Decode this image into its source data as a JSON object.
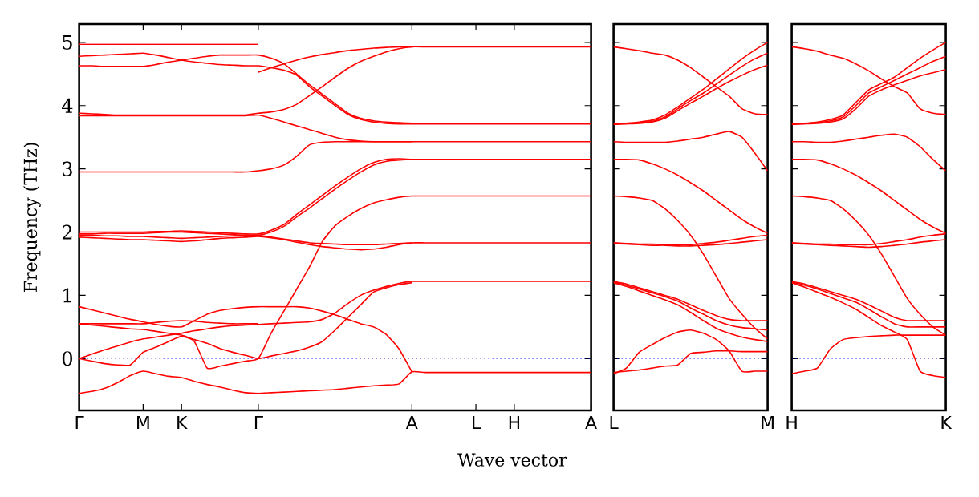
{
  "chart_data": [
    {
      "type": "line",
      "xlabel": "Wave vector",
      "ylabel": "Frequency (THz)",
      "ylim": [
        -0.82,
        5.29
      ],
      "categories": [
        "Γ",
        null,
        null,
        null,
        null,
        "M",
        null,
        null,
        "K",
        null,
        null,
        null,
        null,
        null,
        "Γ",
        null,
        null,
        null,
        null,
        null,
        null,
        null,
        null,
        null,
        null,
        null,
        "A",
        null,
        null,
        null,
        null,
        "L",
        null,
        null,
        "H",
        null,
        null,
        null,
        null,
        null,
        "A"
      ],
      "yticks": [
        0,
        1,
        2,
        3,
        4,
        5
      ],
      "ref_lines": [
        {
          "axis": "y",
          "value": 0,
          "color": "#0000ff",
          "line_style": "dotted"
        }
      ],
      "series": [
        {
          "color": "#ff0000",
          "values": [
            -0.55,
            -0.52,
            -0.47,
            -0.38,
            -0.27,
            -0.2,
            -0.24,
            -0.28,
            -0.3,
            -0.36,
            -0.41,
            -0.45,
            -0.5,
            -0.54,
            -0.55,
            -0.54,
            -0.53,
            -0.52,
            -0.51,
            -0.5,
            -0.49,
            -0.47,
            -0.45,
            -0.43,
            -0.42,
            -0.4,
            -0.21,
            -0.22,
            -0.22,
            -0.22,
            -0.22,
            -0.22,
            -0.22,
            -0.22,
            -0.22,
            -0.22,
            -0.22,
            -0.22,
            -0.22,
            -0.22,
            -0.22
          ]
        },
        {
          "color": "#ff0000",
          "values": [
            0,
            -0.04,
            -0.08,
            -0.1,
            -0.1,
            0.1,
            0.18,
            0.27,
            0.35,
            0.27,
            -0.15,
            -0.12,
            -0.08,
            -0.04,
            0,
            0.4,
            0.75,
            1.1,
            1.45,
            1.85,
            2.1,
            2.25,
            2.37,
            2.46,
            2.51,
            2.55,
            2.57,
            2.57,
            2.57,
            2.57,
            2.57,
            2.57,
            2.57,
            2.57,
            2.57,
            2.57,
            2.57,
            2.57,
            2.57,
            2.57,
            2.57
          ]
        },
        {
          "color": "#ff0000",
          "values": [
            0,
            0.07,
            0.14,
            0.2,
            0.26,
            0.31,
            0.34,
            0.37,
            0.4,
            0.44,
            0.47,
            0.5,
            0.52,
            0.53,
            0.54,
            0.55,
            0.56,
            0.57,
            0.58,
            0.62,
            0.72,
            0.87,
            1.0,
            1.08,
            1.14,
            1.19,
            1.22,
            1.22,
            1.22,
            1.22,
            1.22,
            1.22,
            1.22,
            1.22,
            1.22,
            1.22,
            1.22,
            1.22,
            1.22,
            1.22,
            1.22
          ]
        },
        {
          "color": "#ff0000",
          "values": [
            0.55,
            0.55,
            0.55,
            0.55,
            0.55,
            0.55,
            0.57,
            0.59,
            0.6,
            0.59,
            0.57,
            0.56,
            0.55,
            0.55,
            0.55,
            null,
            null,
            null,
            null,
            null,
            null,
            null,
            null,
            null,
            null,
            null,
            null,
            null,
            null,
            null,
            null,
            null,
            null,
            null,
            null,
            null,
            null,
            null,
            null,
            null,
            null
          ]
        },
        {
          "color": "#ff0000",
          "values": [
            0.55,
            0.53,
            0.51,
            0.49,
            0.47,
            0.46,
            0.43,
            0.4,
            0.37,
            0.3,
            0.24,
            0.16,
            0.1,
            0.05,
            0,
            0.04,
            0.08,
            0.12,
            0.18,
            0.27,
            0.45,
            0.65,
            0.85,
            1.05,
            1.12,
            1.17,
            1.2,
            null,
            null,
            null,
            null,
            null,
            null,
            null,
            null,
            null,
            null,
            null,
            null,
            null,
            null
          ]
        },
        {
          "color": "#ff0000",
          "values": [
            0.82,
            0.77,
            0.72,
            0.67,
            0.62,
            0.58,
            0.54,
            0.51,
            0.5,
            0.6,
            0.7,
            0.76,
            0.79,
            0.81,
            0.82,
            0.82,
            0.82,
            0.82,
            0.8,
            0.75,
            0.69,
            0.62,
            0.55,
            0.5,
            0.38,
            0.15,
            -0.21,
            null,
            null,
            null,
            null,
            null,
            null,
            null,
            null,
            null,
            null,
            null,
            null,
            null,
            null
          ]
        },
        {
          "color": "#ff0000",
          "values": [
            2.0,
            2.0,
            2.0,
            2.0,
            2.0,
            2.0,
            2.01,
            2.01,
            2.02,
            2.01,
            2.0,
            1.99,
            1.98,
            1.97,
            1.97,
            2.03,
            2.12,
            2.28,
            2.43,
            2.58,
            2.73,
            2.87,
            3.0,
            3.1,
            3.15,
            3.16,
            3.15,
            3.15,
            3.15,
            3.15,
            3.15,
            3.15,
            3.15,
            3.15,
            3.15,
            3.15,
            3.15,
            3.15,
            3.15,
            3.15,
            3.15
          ]
        },
        {
          "color": "#ff0000",
          "values": [
            1.95,
            1.95,
            1.94,
            1.94,
            1.93,
            1.93,
            1.92,
            1.91,
            1.9,
            1.91,
            1.92,
            1.93,
            1.94,
            1.95,
            1.95,
            2.0,
            2.09,
            2.24,
            2.38,
            2.53,
            2.68,
            2.82,
            2.95,
            3.06,
            3.12,
            3.14,
            3.15,
            null,
            null,
            null,
            null,
            null,
            null,
            null,
            null,
            null,
            null,
            null,
            null,
            null,
            null
          ]
        },
        {
          "color": "#ff0000",
          "values": [
            1.92,
            1.91,
            1.9,
            1.89,
            1.88,
            1.88,
            1.87,
            1.86,
            1.85,
            1.86,
            1.88,
            1.9,
            1.91,
            1.92,
            1.93,
            1.91,
            1.88,
            1.84,
            1.8,
            1.77,
            1.75,
            1.73,
            1.72,
            1.73,
            1.76,
            1.8,
            1.83,
            1.83,
            1.83,
            1.83,
            1.83,
            1.83,
            1.83,
            1.83,
            1.83,
            1.83,
            1.83,
            1.83,
            1.83,
            1.83,
            1.83
          ]
        },
        {
          "color": "#ff0000",
          "values": [
            1.97,
            1.97,
            1.98,
            1.98,
            1.98,
            1.98,
            1.99,
            2.0,
            2.0,
            1.99,
            1.98,
            1.97,
            1.96,
            1.95,
            1.95,
            1.92,
            1.89,
            1.86,
            1.83,
            1.82,
            1.81,
            1.8,
            1.8,
            1.8,
            1.81,
            1.82,
            1.83,
            null,
            null,
            null,
            null,
            null,
            null,
            null,
            null,
            null,
            null,
            null,
            null,
            null,
            null
          ]
        },
        {
          "color": "#ff0000",
          "values": [
            2.95,
            2.95,
            2.95,
            2.95,
            2.95,
            2.95,
            2.95,
            2.95,
            2.95,
            2.95,
            2.95,
            2.95,
            2.95,
            2.95,
            2.97,
            3.0,
            3.06,
            3.2,
            3.38,
            3.42,
            3.43,
            3.43,
            3.43,
            3.43,
            3.43,
            3.43,
            3.43,
            3.43,
            3.43,
            3.43,
            3.43,
            3.43,
            3.43,
            3.43,
            3.43,
            3.43,
            3.43,
            3.43,
            3.43,
            3.43,
            3.43
          ]
        },
        {
          "color": "#ff0000",
          "values": [
            3.88,
            3.87,
            3.86,
            3.85,
            3.85,
            3.85,
            3.85,
            3.85,
            3.85,
            3.85,
            3.85,
            3.85,
            3.85,
            3.85,
            3.88,
            3.9,
            3.94,
            4.02,
            4.16,
            4.3,
            4.45,
            4.59,
            4.7,
            4.78,
            4.85,
            4.9,
            4.93,
            4.93,
            4.93,
            4.93,
            4.93,
            4.93,
            4.93,
            4.93,
            4.93,
            4.93,
            4.93,
            4.93,
            4.93,
            4.93,
            4.93
          ]
        },
        {
          "color": "#ff0000",
          "values": [
            3.84,
            3.84,
            3.84,
            3.84,
            3.84,
            3.84,
            3.84,
            3.84,
            3.84,
            3.84,
            3.84,
            3.84,
            3.84,
            3.84,
            3.85,
            3.8,
            3.74,
            3.68,
            3.62,
            3.56,
            3.5,
            3.46,
            3.44,
            3.43,
            3.43,
            3.43,
            3.43,
            null,
            null,
            null,
            null,
            null,
            null,
            null,
            null,
            null,
            null,
            null,
            null,
            null,
            null
          ]
        },
        {
          "color": "#ff0000",
          "values": [
            4.78,
            4.79,
            4.8,
            4.81,
            4.82,
            4.83,
            4.8,
            4.76,
            4.72,
            4.69,
            4.67,
            4.65,
            4.64,
            4.63,
            4.63,
            4.6,
            4.56,
            4.48,
            4.3,
            4.15,
            4.0,
            3.86,
            3.78,
            3.74,
            3.72,
            3.71,
            3.71,
            3.71,
            3.71,
            3.71,
            3.71,
            3.71,
            3.71,
            3.71,
            3.71,
            3.71,
            3.71,
            3.71,
            3.71,
            3.71,
            3.71
          ]
        },
        {
          "color": "#ff0000",
          "values": [
            4.63,
            4.63,
            4.62,
            4.62,
            4.62,
            4.62,
            4.65,
            4.69,
            4.72,
            4.75,
            4.78,
            4.8,
            4.8,
            4.8,
            4.8,
            4.75,
            4.66,
            4.5,
            4.33,
            4.18,
            4.03,
            3.88,
            3.8,
            3.76,
            3.74,
            3.73,
            3.72,
            null,
            null,
            null,
            null,
            null,
            null,
            null,
            null,
            null,
            null,
            null,
            null,
            null,
            null
          ]
        },
        {
          "color": "#ff0000",
          "values": [
            4.97,
            4.97,
            4.97,
            4.97,
            4.97,
            4.97,
            4.97,
            4.97,
            4.97,
            4.97,
            4.97,
            4.97,
            4.97,
            4.97,
            4.97,
            null,
            null,
            null,
            null,
            null,
            null,
            null,
            null,
            null,
            null,
            null,
            null,
            null,
            null,
            null,
            null,
            null,
            null,
            null,
            null,
            null,
            null,
            null,
            null,
            null,
            null
          ]
        },
        {
          "color": "#ff0000",
          "values": [
            null,
            null,
            null,
            null,
            null,
            null,
            null,
            null,
            null,
            null,
            null,
            null,
            null,
            null,
            4.53,
            4.6,
            4.66,
            4.72,
            4.77,
            4.81,
            4.84,
            4.87,
            4.89,
            4.91,
            4.92,
            4.93,
            4.93,
            null,
            null,
            null,
            null,
            null,
            null,
            null,
            null,
            null,
            null,
            null,
            null,
            null,
            null
          ]
        }
      ]
    },
    {
      "type": "line",
      "ylim": [
        -0.82,
        5.29
      ],
      "tick_labels": "x",
      "categories": [
        "L",
        null,
        null,
        null,
        null,
        null,
        null,
        null,
        null,
        null,
        null,
        null,
        "M"
      ],
      "yticks": [
        0,
        1,
        2,
        3,
        4,
        5
      ],
      "ref_lines": [
        {
          "axis": "y",
          "value": 0,
          "color": "#0000ff",
          "line_style": "dotted"
        }
      ],
      "series": [
        {
          "color": "#ff0000",
          "values": [
            4.93,
            4.9,
            4.87,
            4.83,
            4.8,
            4.72,
            4.6,
            4.45,
            4.3,
            4.15,
            3.95,
            3.87,
            3.86
          ]
        },
        {
          "color": "#ff0000",
          "values": [
            3.71,
            3.72,
            3.74,
            3.77,
            3.85,
            3.98,
            4.12,
            4.26,
            4.42,
            4.58,
            4.74,
            4.88,
            5.0
          ]
        },
        {
          "color": "#ff0000",
          "values": [
            3.71,
            3.72,
            3.73,
            3.75,
            3.82,
            3.95,
            4.08,
            4.2,
            4.34,
            4.48,
            4.62,
            4.74,
            4.83
          ]
        },
        {
          "color": "#ff0000",
          "values": [
            3.7,
            3.71,
            3.72,
            3.74,
            3.8,
            3.92,
            4.04,
            4.15,
            4.27,
            4.38,
            4.48,
            4.57,
            4.64
          ]
        },
        {
          "color": "#ff0000",
          "values": [
            3.43,
            3.42,
            3.42,
            3.42,
            3.42,
            3.44,
            3.47,
            3.5,
            3.55,
            3.59,
            3.5,
            3.25,
            2.97
          ]
        },
        {
          "color": "#ff0000",
          "values": [
            3.15,
            3.15,
            3.14,
            3.08,
            3.0,
            2.9,
            2.78,
            2.65,
            2.5,
            2.35,
            2.2,
            2.08,
            1.98
          ]
        },
        {
          "color": "#ff0000",
          "values": [
            2.57,
            2.56,
            2.54,
            2.5,
            2.37,
            2.18,
            1.95,
            1.65,
            1.3,
            0.95,
            0.7,
            0.48,
            0.31
          ]
        },
        {
          "color": "#ff0000",
          "values": [
            1.83,
            1.82,
            1.81,
            1.81,
            1.8,
            1.8,
            1.8,
            1.82,
            1.84,
            1.87,
            1.9,
            1.93,
            1.95
          ]
        },
        {
          "color": "#ff0000",
          "values": [
            1.82,
            1.81,
            1.8,
            1.79,
            1.79,
            1.78,
            1.78,
            1.79,
            1.8,
            1.82,
            1.84,
            1.86,
            1.88
          ]
        },
        {
          "color": "#ff0000",
          "values": [
            1.22,
            1.18,
            1.12,
            1.06,
            1.0,
            0.94,
            0.85,
            0.76,
            0.68,
            0.62,
            0.6,
            0.6,
            0.6
          ]
        },
        {
          "color": "#ff0000",
          "values": [
            1.21,
            1.16,
            1.1,
            1.04,
            0.98,
            0.91,
            0.8,
            0.7,
            0.6,
            0.53,
            0.49,
            0.47,
            0.45
          ]
        },
        {
          "color": "#ff0000",
          "values": [
            1.2,
            1.14,
            1.07,
            1.0,
            0.93,
            0.85,
            0.73,
            0.6,
            0.48,
            0.4,
            0.34,
            0.3,
            0.27
          ]
        },
        {
          "color": "#ff0000",
          "values": [
            -0.24,
            -0.15,
            0.1,
            0.22,
            0.33,
            0.42,
            0.45,
            0.4,
            0.3,
            0.12,
            -0.2,
            -0.2,
            -0.2
          ]
        },
        {
          "color": "#ff0000",
          "values": [
            -0.22,
            -0.2,
            -0.18,
            -0.15,
            -0.12,
            -0.1,
            0.08,
            0.1,
            0.12,
            0.12,
            0.11,
            0.11,
            0.11
          ]
        }
      ]
    },
    {
      "type": "line",
      "ylim": [
        -0.82,
        5.29
      ],
      "tick_labels": "x",
      "categories": [
        "H",
        null,
        null,
        null,
        null,
        null,
        null,
        null,
        null,
        null,
        null,
        null,
        "K"
      ],
      "yticks": [
        0,
        1,
        2,
        3,
        4,
        5
      ],
      "ref_lines": [
        {
          "axis": "y",
          "value": 0,
          "color": "#0000ff",
          "line_style": "dotted"
        }
      ],
      "series": [
        {
          "color": "#ff0000",
          "values": [
            4.93,
            4.9,
            4.86,
            4.8,
            4.75,
            4.66,
            4.55,
            4.42,
            4.3,
            4.2,
            3.95,
            3.88,
            3.86
          ]
        },
        {
          "color": "#ff0000",
          "values": [
            3.71,
            3.72,
            3.74,
            3.78,
            3.85,
            4.05,
            4.25,
            4.35,
            4.45,
            4.6,
            4.75,
            4.88,
            5.0
          ]
        },
        {
          "color": "#ff0000",
          "values": [
            3.71,
            3.72,
            3.73,
            3.76,
            3.82,
            4.0,
            4.2,
            4.3,
            4.4,
            4.5,
            4.6,
            4.7,
            4.78
          ]
        },
        {
          "color": "#ff0000",
          "values": [
            3.7,
            3.71,
            3.72,
            3.74,
            3.79,
            3.95,
            4.15,
            4.25,
            4.33,
            4.4,
            4.47,
            4.52,
            4.57
          ]
        },
        {
          "color": "#ff0000",
          "values": [
            3.43,
            3.43,
            3.42,
            3.42,
            3.44,
            3.47,
            3.5,
            3.53,
            3.55,
            3.5,
            3.35,
            3.15,
            2.97
          ]
        },
        {
          "color": "#ff0000",
          "values": [
            3.15,
            3.15,
            3.14,
            3.08,
            3.0,
            2.9,
            2.78,
            2.65,
            2.5,
            2.35,
            2.2,
            2.08,
            1.98
          ]
        },
        {
          "color": "#ff0000",
          "values": [
            2.57,
            2.56,
            2.54,
            2.5,
            2.37,
            2.18,
            1.95,
            1.65,
            1.3,
            0.95,
            0.7,
            0.5,
            0.37
          ]
        },
        {
          "color": "#ff0000",
          "values": [
            1.83,
            1.82,
            1.81,
            1.81,
            1.8,
            1.8,
            1.8,
            1.82,
            1.85,
            1.88,
            1.92,
            1.95,
            1.97
          ]
        },
        {
          "color": "#ff0000",
          "values": [
            1.82,
            1.81,
            1.8,
            1.79,
            1.78,
            1.77,
            1.76,
            1.77,
            1.79,
            1.81,
            1.84,
            1.86,
            1.88
          ]
        },
        {
          "color": "#ff0000",
          "values": [
            1.22,
            1.18,
            1.12,
            1.06,
            1.0,
            0.94,
            0.85,
            0.75,
            0.65,
            0.6,
            0.6,
            0.6,
            0.6
          ]
        },
        {
          "color": "#ff0000",
          "values": [
            1.21,
            1.16,
            1.1,
            1.03,
            0.96,
            0.89,
            0.78,
            0.66,
            0.55,
            0.5,
            0.5,
            0.5,
            0.5
          ]
        },
        {
          "color": "#ff0000",
          "values": [
            -0.24,
            -0.2,
            -0.15,
            0.15,
            0.3,
            0.33,
            0.35,
            0.36,
            0.37,
            0.37,
            0.37,
            0.37,
            0.37
          ]
        },
        {
          "color": "#ff0000",
          "values": [
            1.2,
            1.13,
            1.05,
            0.97,
            0.88,
            0.78,
            0.65,
            0.52,
            0.42,
            0.3,
            -0.2,
            -0.27,
            -0.3
          ]
        }
      ]
    }
  ]
}
